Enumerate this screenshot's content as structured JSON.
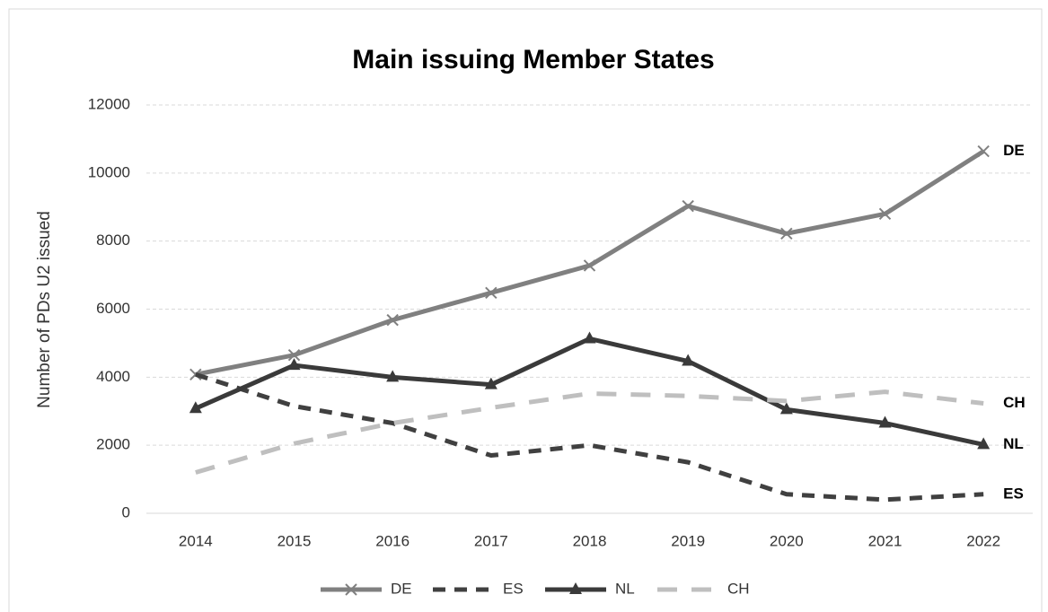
{
  "chart_data": {
    "type": "line",
    "title": "Main issuing Member States",
    "y_label": "Number of PDs U2 issued",
    "categories": [
      "2014",
      "2015",
      "2016",
      "2017",
      "2018",
      "2019",
      "2020",
      "2021",
      "2022"
    ],
    "series": [
      {
        "name": "DE",
        "color": "#808080",
        "dash": "solid",
        "marker": "x",
        "values": [
          4080,
          4650,
          5680,
          6480,
          7280,
          9030,
          8220,
          8800,
          10640
        ]
      },
      {
        "name": "ES",
        "color": "#404040",
        "dash": "dash",
        "marker": "none",
        "values": [
          4080,
          3150,
          2650,
          1700,
          2000,
          1500,
          560,
          400,
          560
        ]
      },
      {
        "name": "NL",
        "color": "#3a3a3a",
        "dash": "solid",
        "marker": "triangle",
        "values": [
          3080,
          4350,
          4000,
          3780,
          5130,
          4470,
          3050,
          2650,
          2020
        ]
      },
      {
        "name": "CH",
        "color": "#bfbfbf",
        "dash": "longdash",
        "marker": "none",
        "values": [
          1200,
          2050,
          2650,
          3100,
          3520,
          3450,
          3300,
          3570,
          3230
        ]
      }
    ],
    "ylim": [
      0,
      12000
    ],
    "yticks": [
      0,
      2000,
      4000,
      6000,
      8000,
      10000,
      12000
    ],
    "grid": true,
    "legend": "bottom",
    "end_labels": true
  }
}
